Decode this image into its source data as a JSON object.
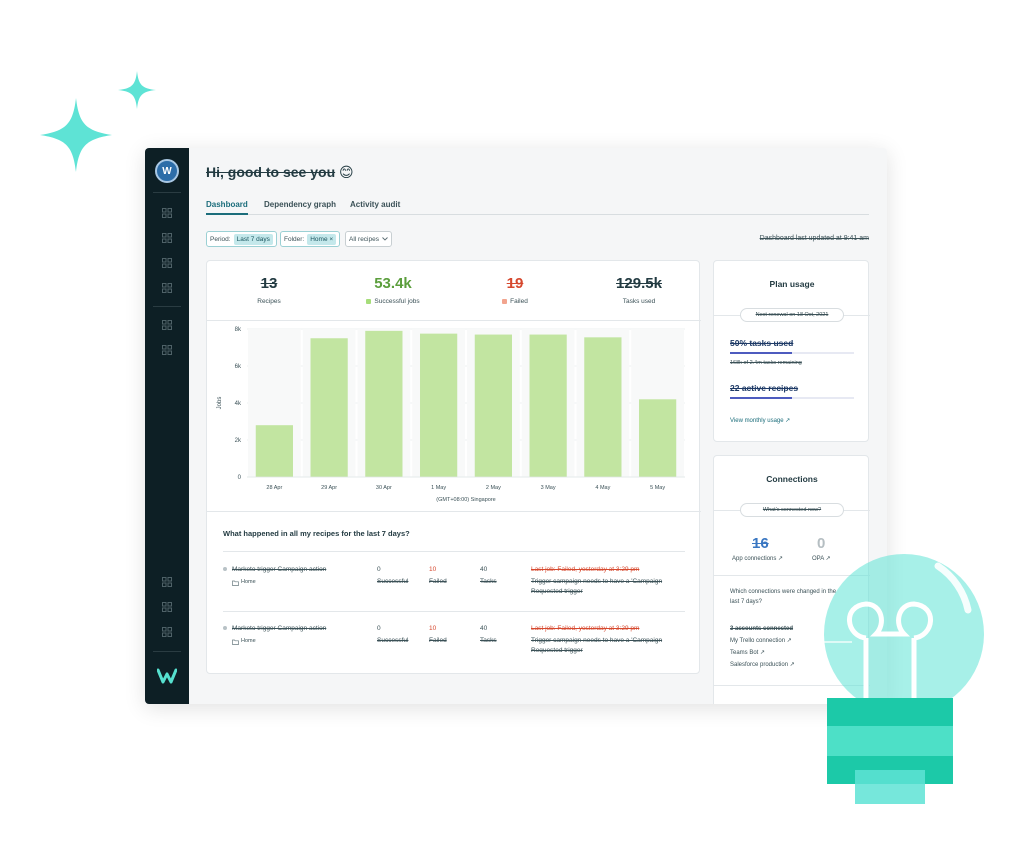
{
  "colors": {
    "accent": "#1b6d7b",
    "rail_bg": "#0d1f25",
    "bar_green": "#c2e5a1",
    "success_green": "#5b9e3c",
    "fail_red": "#d6482e",
    "mint": "#5ee3d5"
  },
  "user": {
    "avatar_initial": "W"
  },
  "header": {
    "greeting": "Hi, good to see you",
    "emoji": "😊"
  },
  "tabs": [
    {
      "label": "Dashboard",
      "active": true
    },
    {
      "label": "Dependency graph",
      "active": false
    },
    {
      "label": "Activity audit",
      "active": false
    }
  ],
  "filters": {
    "period_label": "Period:",
    "period_value": "Last 7 days",
    "folder_label": "Folder:",
    "folder_value": "Home",
    "folder_clear": "×",
    "recipes_select": "All recipes",
    "updated_text": "Dashboard last updated at 9:41 am"
  },
  "stats": [
    {
      "value": "13",
      "label": "Recipes"
    },
    {
      "value": "53.4k",
      "label": "Successful jobs"
    },
    {
      "value": "19",
      "label": "Failed"
    },
    {
      "value": "129.5k",
      "label": "Tasks used"
    }
  ],
  "chart_data": {
    "type": "bar",
    "categories": [
      "28 Apr",
      "29 Apr",
      "30 Apr",
      "1 May",
      "2 May",
      "3 May",
      "4 May",
      "5 May"
    ],
    "values": [
      2800,
      7500,
      7900,
      7750,
      7700,
      7700,
      7550,
      4200
    ],
    "ylabel": "Jobs",
    "xlabel": "(GMT+08:00) Singapore",
    "ylim": [
      0,
      8000
    ],
    "ytick_labels": [
      "0",
      "2k",
      "4k",
      "6k",
      "8k"
    ],
    "yticks": [
      0,
      2000,
      4000,
      6000,
      8000
    ],
    "grid": true,
    "color": "#c2e5a1"
  },
  "recipes_section": {
    "title": "What happened in all my recipes for the last 7 days?",
    "rows": [
      {
        "name": "Marketo trigger Campaign action",
        "folder": "Home",
        "successful": "0",
        "successful_label": "Successful",
        "failed": "10",
        "failed_label": "Failed",
        "tasks": "40",
        "tasks_label": "Tasks",
        "last_job": "Last job: Failed, yesterday at 3:29 pm",
        "error_line1": "Trigger campaign needs to have a 'Campaign",
        "error_line2": "Requested trigger"
      },
      {
        "name": "Marketo trigger Campaign action",
        "folder": "Home",
        "successful": "0",
        "successful_label": "Successful",
        "failed": "10",
        "failed_label": "Failed",
        "tasks": "40",
        "tasks_label": "Tasks",
        "last_job": "Last job: Failed, yesterday at 3:29 pm",
        "error_line1": "Trigger campaign needs to have a 'Campaign",
        "error_line2": "Requested trigger"
      }
    ]
  },
  "plan_usage": {
    "title": "Plan usage",
    "renewal_text": "Next renewal on 18 Oct, 2021",
    "tasks_used": "50% tasks used",
    "tasks_fraction": 0.5,
    "tasks_remaining": "168k of 2.4m tasks remaining",
    "active_recipes": "22 active recipes",
    "recipes_fraction": 0.5,
    "monthly_link": "View monthly usage"
  },
  "connections": {
    "title": "Connections",
    "whats_connected": "What's connected now?",
    "app_count": "16",
    "app_label": "App connections",
    "opa_count": "0",
    "opa_label": "OPA",
    "question_line1": "Which connections were changed in the",
    "question_line2": "last 7 days?",
    "accounts_connected": "3 accounts connected",
    "items": [
      "My Trello connection",
      "Teams Bot",
      "Salesforce production"
    ]
  }
}
